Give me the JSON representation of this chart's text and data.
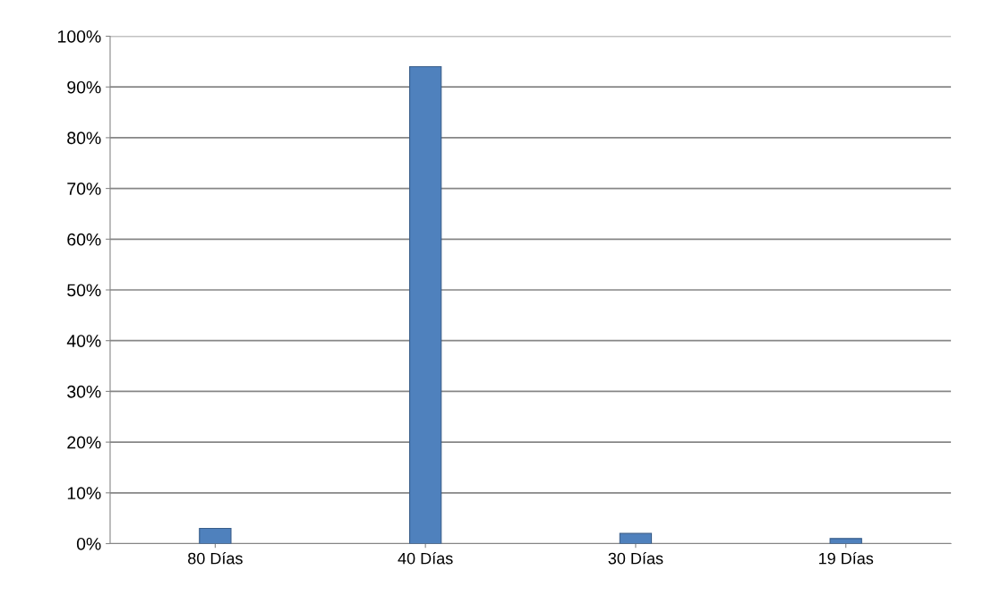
{
  "chart_data": {
    "type": "bar",
    "categories": [
      "80 Días",
      "40 Días",
      "30 Días",
      "19 Días"
    ],
    "values": [
      3,
      94,
      2,
      1
    ],
    "color": "#4f81bd",
    "ylim": [
      0,
      100
    ],
    "yticks": [
      {
        "value": 0,
        "label": "0%"
      },
      {
        "value": 10,
        "label": "10%"
      },
      {
        "value": 20,
        "label": "20%"
      },
      {
        "value": 30,
        "label": "30%"
      },
      {
        "value": 40,
        "label": "40%"
      },
      {
        "value": 50,
        "label": "50%"
      },
      {
        "value": 60,
        "label": "60%"
      },
      {
        "value": 70,
        "label": "70%"
      },
      {
        "value": 80,
        "label": "80%"
      },
      {
        "value": 90,
        "label": "90%"
      },
      {
        "value": 100,
        "label": "100%"
      }
    ],
    "grid": "y"
  }
}
